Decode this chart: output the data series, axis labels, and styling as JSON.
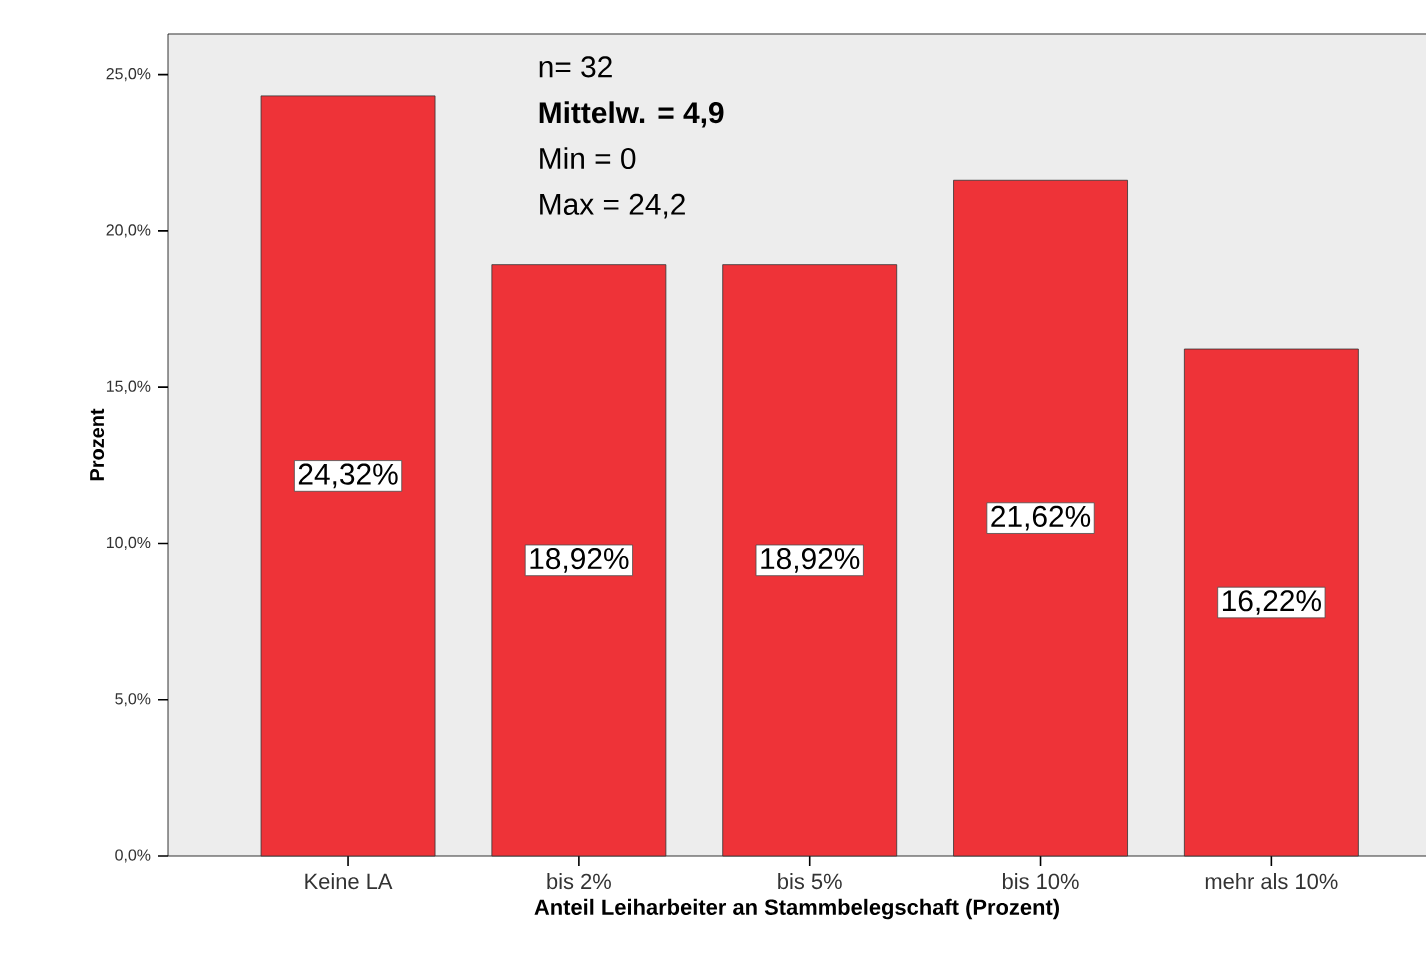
{
  "chart_data": {
    "type": "bar",
    "xlabel": "Anteil Leiharbeiter an Stammbelegschaft (Prozent)",
    "ylabel": "Prozent",
    "categories": [
      "Keine LA",
      "bis 2%",
      "bis 5%",
      "bis 10%",
      "mehr als 10%"
    ],
    "values": [
      24.32,
      18.92,
      18.92,
      21.62,
      16.22
    ],
    "value_labels": [
      "24,32%",
      "18,92%",
      "18,92%",
      "21,62%",
      "16,22%"
    ],
    "color": "#ee3338",
    "ylim": [
      0,
      26.3
    ],
    "yticks": [
      {
        "value": 0,
        "label": "0,0%"
      },
      {
        "value": 5,
        "label": "5,0%"
      },
      {
        "value": 10,
        "label": "10,0%"
      },
      {
        "value": 15,
        "label": "15,0%"
      },
      {
        "value": 20,
        "label": "20,0%"
      },
      {
        "value": 25,
        "label": "25,0%"
      }
    ],
    "annotations": [
      "n= 32",
      "**Mittelw. = 4,9**",
      "Min = 0",
      "Max = 24,2"
    ],
    "grid": false
  }
}
